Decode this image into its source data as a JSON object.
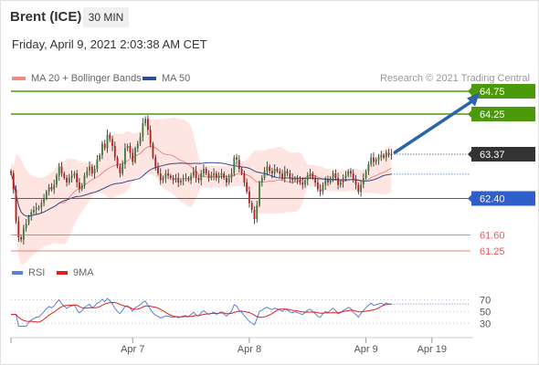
{
  "header": {
    "instrument": "Brent (ICE)",
    "timeframe": "30 MIN",
    "datetime": "Friday, April 9, 2021 2:03:38 AM CET"
  },
  "legend": {
    "items": [
      {
        "label": "MA 20 + Bollinger Bands",
        "color": "#f08a80"
      },
      {
        "label": "MA 50",
        "color": "#2f4f8f"
      }
    ],
    "rsi_items": [
      {
        "label": "RSI",
        "color": "#5b7fd6"
      },
      {
        "label": "9MA",
        "color": "#e02020"
      }
    ]
  },
  "credit": "Research © 2021 Trading Central",
  "colors": {
    "resistance": "#4c9a0c",
    "support_blue": "#2f5fc9",
    "support_red": "#e05a5a",
    "current": "#333333",
    "bull_candle": "#3a7a3a",
    "bear_candle": "#b02020",
    "band_fill": "#ffe0dc",
    "arrow": "#2d63a8"
  },
  "chart_data": {
    "type": "candlestick",
    "ylim": [
      61.15,
      64.85
    ],
    "levels": [
      {
        "value": 64.75,
        "label": "64.75",
        "kind": "resistance"
      },
      {
        "value": 64.25,
        "label": "64.25",
        "kind": "resistance"
      },
      {
        "value": 63.37,
        "label": "63.37",
        "kind": "current"
      },
      {
        "value": 62.4,
        "label": "62.40",
        "kind": "support_blue"
      },
      {
        "value": 61.6,
        "label": "61.60",
        "kind": "support_red"
      },
      {
        "value": 61.25,
        "label": "61.25",
        "kind": "support_red"
      }
    ],
    "x_ticks": [
      "Apr 7",
      "Apr 8",
      "Apr 9",
      "Apr 19"
    ],
    "closes": [
      62.95,
      62.6,
      61.9,
      61.55,
      61.5,
      61.75,
      61.85,
      62.0,
      62.1,
      62.15,
      62.2,
      62.2,
      62.3,
      62.4,
      62.55,
      62.65,
      62.6,
      62.7,
      62.9,
      63.1,
      62.95,
      62.85,
      62.75,
      62.85,
      62.9,
      62.95,
      62.75,
      62.6,
      62.7,
      62.9,
      63.0,
      63.1,
      62.95,
      63.05,
      63.25,
      63.35,
      63.6,
      63.5,
      63.8,
      63.7,
      63.55,
      63.3,
      63.1,
      62.95,
      63.15,
      63.5,
      63.55,
      63.4,
      63.2,
      63.5,
      63.6,
      63.75,
      64.05,
      64.15,
      63.9,
      63.6,
      63.3,
      63.1,
      62.95,
      62.8,
      62.85,
      62.95,
      62.9,
      62.85,
      62.8,
      62.85,
      62.75,
      62.8,
      62.85,
      62.85,
      62.8,
      62.9,
      63.0,
      62.85,
      62.8,
      62.95,
      63.05,
      62.95,
      62.85,
      62.9,
      62.95,
      62.85,
      62.9,
      62.95,
      62.85,
      62.75,
      62.85,
      62.95,
      63.3,
      63.25,
      63.05,
      62.95,
      62.75,
      62.55,
      62.3,
      62.15,
      61.95,
      62.25,
      62.75,
      62.85,
      63.0,
      63.1,
      63.0,
      62.95,
      63.05,
      63.0,
      62.95,
      62.85,
      63.0,
      62.95,
      62.85,
      62.8,
      62.85,
      62.8,
      62.75,
      62.7,
      62.8,
      62.9,
      62.95,
      62.85,
      62.75,
      62.6,
      62.55,
      62.7,
      62.8,
      62.75,
      62.85,
      62.95,
      62.85,
      62.7,
      62.75,
      62.85,
      62.9,
      63.0,
      62.95,
      62.8,
      62.7,
      62.55,
      62.7,
      62.85,
      63.0,
      63.15,
      63.3,
      63.2,
      63.25,
      63.3,
      63.35,
      63.3,
      63.4,
      63.35,
      63.37
    ],
    "x_domain": [
      0,
      165
    ],
    "tick_positions": [
      48,
      94,
      140,
      166
    ],
    "rsi": {
      "levels": [
        70,
        50,
        30
      ],
      "ylim": [
        15,
        80
      ]
    }
  }
}
